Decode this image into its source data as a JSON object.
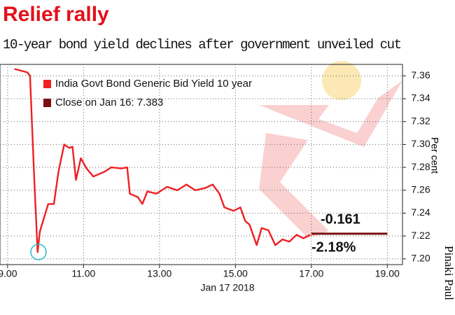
{
  "chart_data": {
    "type": "line",
    "title": "Relief rally",
    "subtitle": "10-year bond yield declines after government unveiled cut",
    "x_label": "Jan 17 2018",
    "y_label": "Per cent",
    "credit": "Pinaki Paul",
    "annotations": [
      "-0.161",
      "-2.18%"
    ],
    "legend": "top-left",
    "grid": true,
    "xlim": [
      8.8,
      19.4
    ],
    "ylim": [
      7.195,
      7.37
    ],
    "xticks": [
      {
        "value": 9,
        "label": "9.00"
      },
      {
        "value": 11,
        "label": "11.00"
      },
      {
        "value": 13,
        "label": "13.00"
      },
      {
        "value": 15,
        "label": "15.00"
      },
      {
        "value": 17,
        "label": "17.00"
      },
      {
        "value": 19,
        "label": "19.00"
      }
    ],
    "yticks": [
      {
        "value": 7.2,
        "label": "7.20"
      },
      7.22,
      7.24,
      7.26,
      7.28,
      {
        "value": 7.3,
        "label": "7.30"
      },
      7.32,
      7.34,
      7.36
    ],
    "series": [
      {
        "name": "India Govt Bond Generic Bid Yield 10 year",
        "color": "#ee2024",
        "x": [
          9.18,
          9.52,
          9.59,
          9.7,
          9.79,
          9.85,
          9.96,
          10.07,
          10.22,
          10.34,
          10.49,
          10.62,
          10.71,
          10.8,
          10.93,
          11.08,
          11.26,
          11.54,
          11.73,
          12.0,
          12.15,
          12.22,
          12.43,
          12.55,
          12.68,
          12.92,
          13.2,
          13.47,
          13.71,
          13.94,
          14.21,
          14.4,
          14.58,
          14.71,
          14.95,
          15.13,
          15.26,
          15.37,
          15.56,
          15.69,
          15.87,
          16.05,
          16.24,
          16.42,
          16.61,
          16.79,
          16.97
        ],
        "values": [
          7.366,
          7.363,
          7.36,
          7.272,
          7.206,
          7.224,
          7.236,
          7.248,
          7.248,
          7.276,
          7.3,
          7.297,
          7.298,
          7.269,
          7.288,
          7.279,
          7.272,
          7.276,
          7.28,
          7.279,
          7.28,
          7.257,
          7.254,
          7.248,
          7.259,
          7.257,
          7.263,
          7.26,
          7.265,
          7.26,
          7.262,
          7.265,
          7.257,
          7.245,
          7.242,
          7.245,
          7.233,
          7.23,
          7.212,
          7.227,
          7.225,
          7.212,
          7.217,
          7.215,
          7.221,
          7.218,
          7.221
        ]
      },
      {
        "name": "Close on Jan 16: 7.383",
        "color": "#7a0f12",
        "x": [
          17.0,
          19.0
        ],
        "values": [
          7.222,
          7.222
        ]
      }
    ]
  }
}
